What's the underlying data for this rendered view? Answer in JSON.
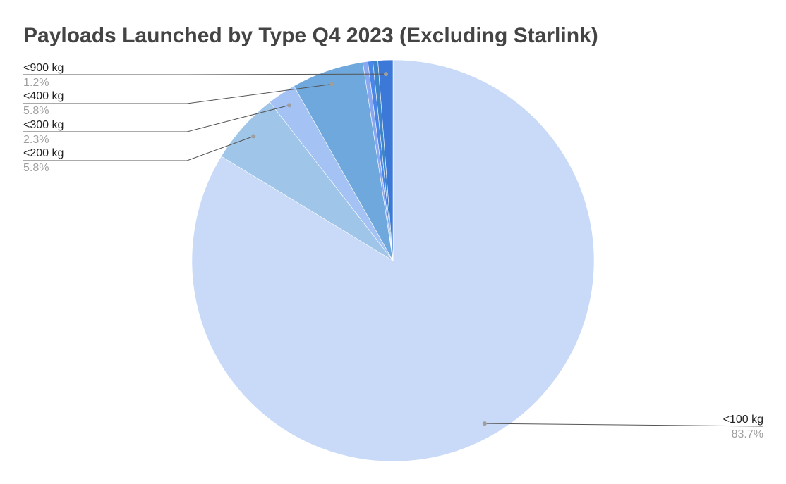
{
  "chart_data": {
    "type": "pie",
    "title": "Payloads Launched by Type Q4 2023 (Excluding Starlink)",
    "slices": [
      {
        "label": "<100 kg",
        "value": 83.7,
        "pct_label": "83.7%",
        "color": "#c9daf8"
      },
      {
        "label": "<200 kg",
        "value": 5.8,
        "pct_label": "5.8%",
        "color": "#9fc5e8"
      },
      {
        "label": "<300 kg",
        "value": 2.3,
        "pct_label": "2.3%",
        "color": "#a4c2f4"
      },
      {
        "label": "<400 kg",
        "value": 5.8,
        "pct_label": "5.8%",
        "color": "#6fa8dc"
      },
      {
        "label": "",
        "value": 0.4,
        "pct_label": "",
        "color": "#8aa8f0"
      },
      {
        "label": "",
        "value": 0.4,
        "pct_label": "",
        "color": "#4a86e8"
      },
      {
        "label": "",
        "value": 0.4,
        "pct_label": "",
        "color": "#3d85c6"
      },
      {
        "label": "<900 kg",
        "value": 1.2,
        "pct_label": "1.2%",
        "color": "#3c78d8"
      }
    ],
    "legend": "none"
  }
}
